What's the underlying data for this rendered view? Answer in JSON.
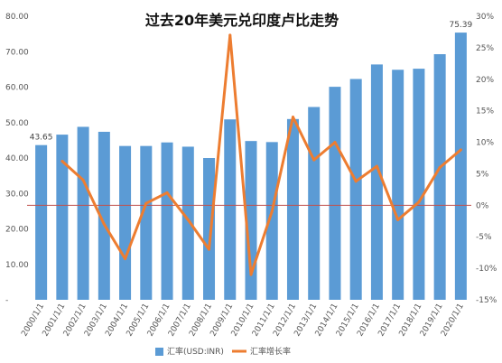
{
  "chart_data": {
    "type": "bar",
    "title": "过去20年美元兑印度卢比走势",
    "categories": [
      "2000/1/1",
      "2001/1/1",
      "2002/1/1",
      "2003/1/1",
      "2004/1/1",
      "2005/1/1",
      "2006/1/1",
      "2007/1/1",
      "2008/1/1",
      "2009/1/1",
      "2010/1/1",
      "2011/1/1",
      "2012/1/1",
      "2013/1/1",
      "2014/1/1",
      "2015/1/1",
      "2016/1/1",
      "2017/1/1",
      "2018/1/1",
      "2019/1/1",
      "2020/1/1"
    ],
    "series": [
      {
        "name": "汇率(USD:INR)",
        "type": "bar",
        "axis": "left",
        "color": "#5b9bd5",
        "values": [
          43.65,
          46.6,
          48.8,
          47.4,
          43.4,
          43.4,
          44.4,
          43.2,
          40.0,
          50.9,
          44.8,
          44.5,
          51.0,
          54.4,
          60.1,
          62.3,
          66.4,
          64.9,
          65.2,
          69.3,
          75.39
        ]
      },
      {
        "name": "汇率增长率",
        "type": "line",
        "axis": "right",
        "color": "#ed7d31",
        "values": [
          null,
          7.0,
          4.0,
          -3.0,
          -8.5,
          0.3,
          2.0,
          -2.3,
          -7.0,
          27.0,
          -11.0,
          -1.0,
          14.0,
          7.2,
          10.0,
          3.8,
          6.2,
          -2.3,
          0.5,
          6.0,
          8.8
        ]
      }
    ],
    "y_left": {
      "min": 0,
      "max": 80,
      "step": 10,
      "tick_labels": [
        "-",
        "10.00",
        "20.00",
        "30.00",
        "40.00",
        "50.00",
        "60.00",
        "70.00",
        "80.00"
      ]
    },
    "y_right": {
      "min": -15,
      "max": 30,
      "step": 5,
      "tick_labels": [
        "-15%",
        "-10%",
        "-5%",
        "0%",
        "5%",
        "10%",
        "15%",
        "20%",
        "25%",
        "30%"
      ]
    },
    "data_labels": [
      {
        "series": 0,
        "index": 0,
        "text": "43.65"
      },
      {
        "series": 0,
        "index": 20,
        "text": "75.39"
      }
    ],
    "reference_line": {
      "axis": "right",
      "value": 0,
      "color": "#c0504d"
    },
    "legend": {
      "position": "bottom",
      "items": [
        {
          "label": "汇率(USD:INR)",
          "symbol": "bar",
          "color": "#5b9bd5"
        },
        {
          "label": "汇率增长率",
          "symbol": "line",
          "color": "#ed7d31"
        }
      ]
    }
  }
}
